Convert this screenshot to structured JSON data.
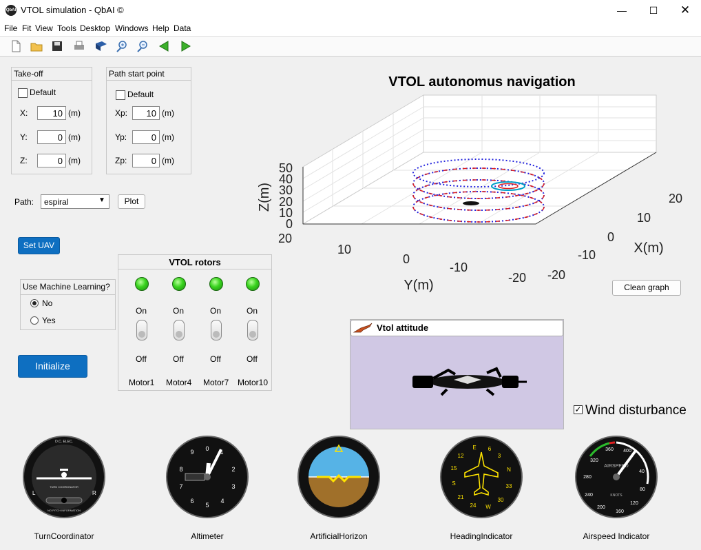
{
  "window": {
    "title": "VTOL simulation - QbAI ©",
    "app_icon": "QbAI"
  },
  "menu": [
    "File",
    "Fit",
    "View",
    "Tools",
    "Desktop",
    "Windows",
    "Help",
    "Data"
  ],
  "toolbar_icons": [
    "new-file-icon",
    "open-folder-icon",
    "save-icon",
    "print-icon",
    "book-icon",
    "zoom-in-icon",
    "zoom-out-icon",
    "back-arrow-icon",
    "forward-arrow-icon"
  ],
  "takeoff": {
    "title": "Take-off",
    "default_label": "Default",
    "default_checked": false,
    "fields": [
      {
        "label": "X:",
        "value": "10",
        "unit": "(m)"
      },
      {
        "label": "Y:",
        "value": "0",
        "unit": "(m)"
      },
      {
        "label": "Z:",
        "value": "0",
        "unit": "(m)"
      }
    ]
  },
  "path_start": {
    "title": "Path start point",
    "default_label": "Default",
    "default_checked": false,
    "fields": [
      {
        "label": "Xp:",
        "value": "10",
        "unit": "(m)"
      },
      {
        "label": "Yp:",
        "value": "0",
        "unit": "(m)"
      },
      {
        "label": "Zp:",
        "value": "0",
        "unit": "(m)"
      }
    ]
  },
  "path": {
    "label": "Path:",
    "value": "espiral",
    "plot_label": "Plot"
  },
  "set_uav_label": "Set UAV",
  "ml": {
    "title": "Use Machine Learning?",
    "options": [
      "No",
      "Yes"
    ],
    "selected": "No"
  },
  "initialize_label": "Initialize",
  "rotors": {
    "title": "VTOL rotors",
    "on_label": "On",
    "off_label": "Off",
    "motors": [
      "Motor1",
      "Motor4",
      "Motor7",
      "Motor10"
    ]
  },
  "plot": {
    "title": "VTOL autonomus navigation",
    "xlabel": "X(m)",
    "ylabel": "Y(m)",
    "zlabel": "Z(m)",
    "z_ticks": [
      "0",
      "10",
      "20",
      "30",
      "40",
      "50"
    ],
    "y_ticks": [
      "20",
      "10",
      "0",
      "-10",
      "-20"
    ],
    "x_ticks": [
      "-20",
      "-10",
      "0",
      "10",
      "20"
    ],
    "path_color": "#2222dd",
    "ref_color": "#dd2222",
    "clean_label": "Clean graph"
  },
  "attitude": {
    "title": "Vtol attitude",
    "bg_color": "#d0c8e4"
  },
  "wind": {
    "label": "Wind disturbance",
    "checked": true
  },
  "gauges": [
    {
      "name": "TurnCoordinator",
      "icon": "turn-coordinator-icon"
    },
    {
      "name": "Altimeter",
      "icon": "altimeter-icon"
    },
    {
      "name": "ArtificialHorizon",
      "icon": "artificial-horizon-icon"
    },
    {
      "name": "HeadingIndicator",
      "icon": "heading-indicator-icon"
    },
    {
      "name": "Airspeed Indicator",
      "icon": "airspeed-indicator-icon"
    }
  ],
  "turn_coord_text": {
    "top": "D.C.\nELEC.",
    "center": "TURN COORDINATOR",
    "left": "L",
    "right": "R",
    "bottom": "NO PITCH\nINFORMATION"
  },
  "altimeter_digits": [
    "1",
    "2",
    "3",
    "4",
    "5",
    "6",
    "7",
    "8",
    "9",
    "0"
  ],
  "heading_marks": [
    "N",
    "3",
    "6",
    "E",
    "12",
    "15",
    "S",
    "21",
    "24",
    "W",
    "30",
    "33"
  ],
  "airspeed_marks": [
    "40",
    "80",
    "120",
    "160",
    "200",
    "240",
    "280",
    "320",
    "360",
    "400"
  ],
  "airspeed_text": {
    "name": "AIRSPEED",
    "unit": "KNOTS"
  }
}
